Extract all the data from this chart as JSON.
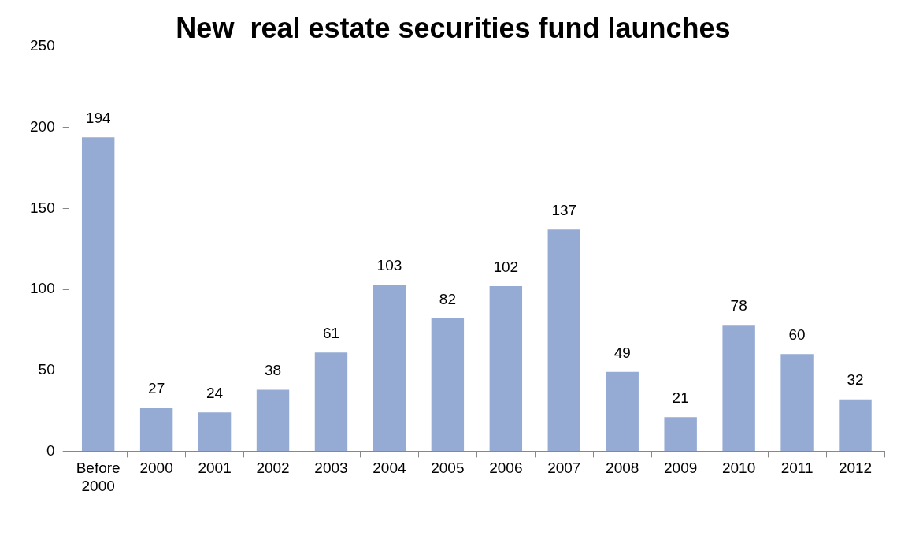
{
  "chart_data": {
    "type": "bar",
    "title": "New  real estate securities fund launches",
    "categories": [
      "Before 2000",
      "2000",
      "2001",
      "2002",
      "2003",
      "2004",
      "2005",
      "2006",
      "2007",
      "2008",
      "2009",
      "2010",
      "2011",
      "2012"
    ],
    "values": [
      194,
      27,
      24,
      38,
      61,
      103,
      82,
      102,
      137,
      49,
      21,
      78,
      60,
      32
    ],
    "color": "#95abd4",
    "ylim": [
      0,
      250
    ],
    "yticks": [
      0,
      50,
      100,
      150,
      200,
      250
    ],
    "grid": false,
    "legend": false,
    "data_labels": true
  }
}
